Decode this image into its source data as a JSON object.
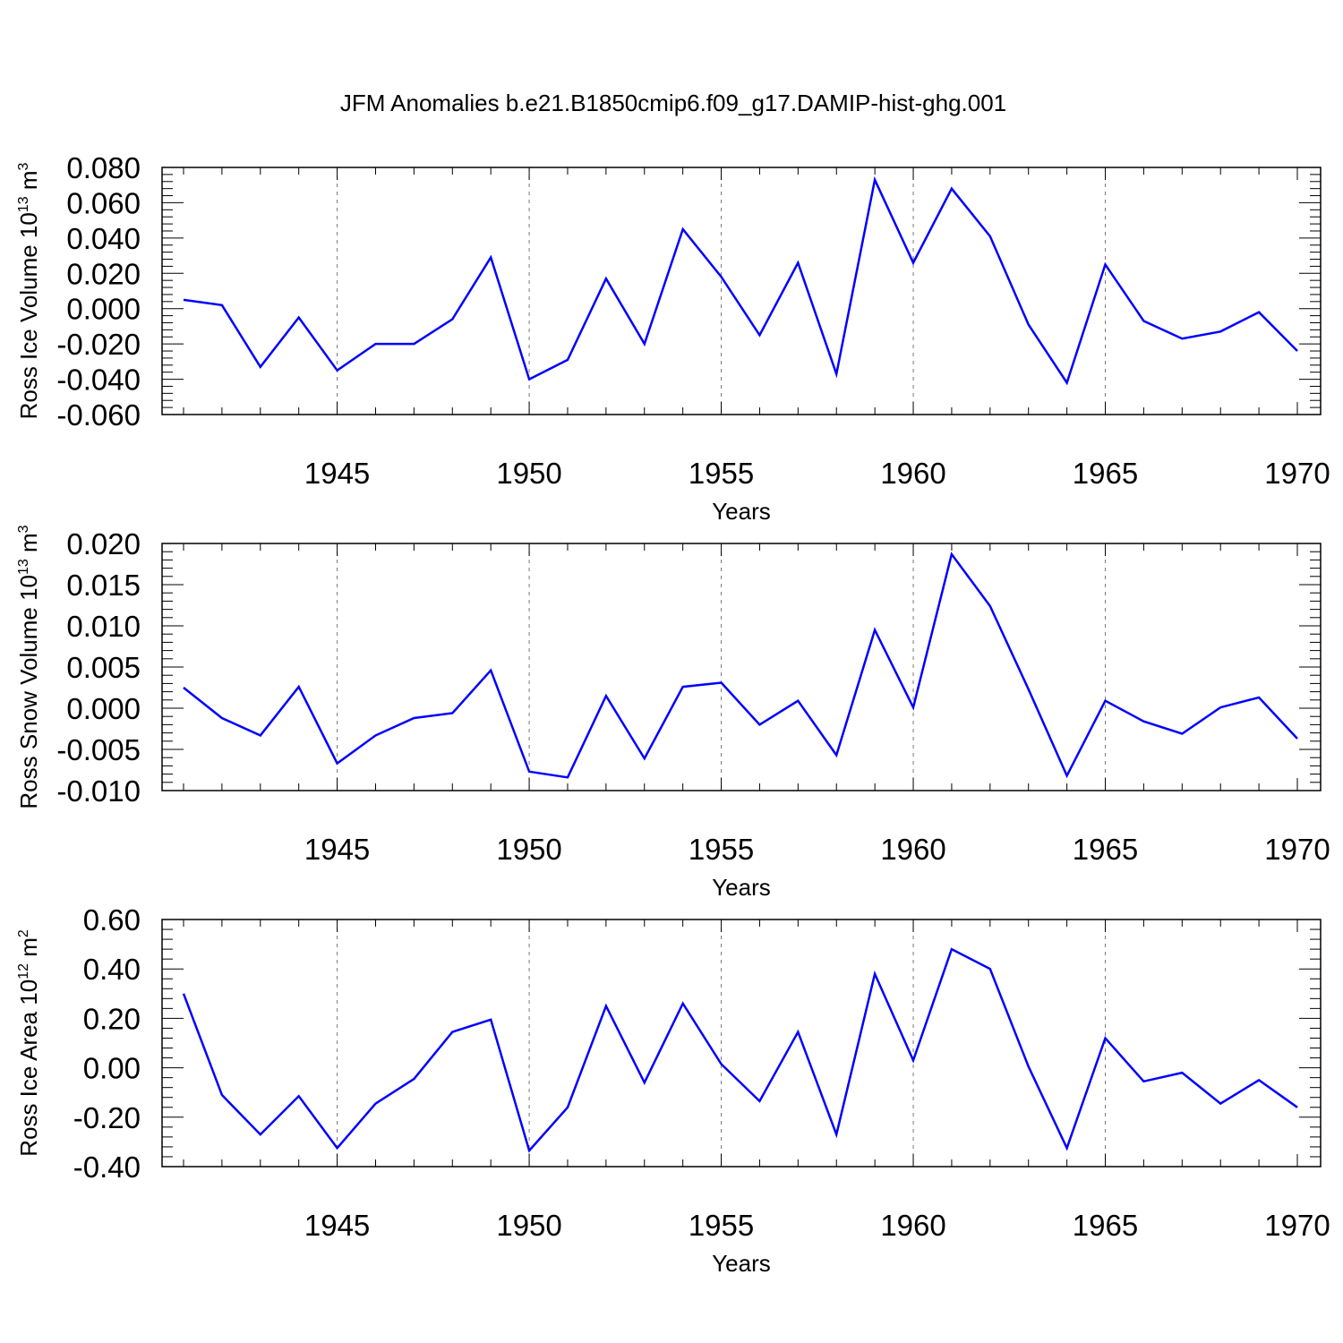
{
  "title": "JFM Anomalies b.e21.B1850cmip6.f09_g17.DAMIP-hist-ghg.001",
  "line_color": "#0000ff",
  "chart_data": [
    {
      "type": "line",
      "ylabel": "Ross Ice Volume 10",
      "ylabel_exp": "13",
      "ylabel_unit": " m",
      "ylabel_unit_exp": "3",
      "xlabel": "Years",
      "xlim": [
        1941,
        1970
      ],
      "ylim": [
        -0.06,
        0.08
      ],
      "ytick_values": [
        -0.06,
        -0.04,
        -0.02,
        0.0,
        0.02,
        0.04,
        0.06,
        0.08
      ],
      "ytick_labels": [
        "-0.060",
        "-0.040",
        "-0.020",
        "0.000",
        "0.020",
        "0.040",
        "0.060",
        "0.080"
      ],
      "xtick_values": [
        1945,
        1950,
        1955,
        1960,
        1965,
        1970
      ],
      "xtick_labels": [
        "1945",
        "1950",
        "1955",
        "1960",
        "1965",
        "1970"
      ],
      "grid": "vertical dashed at labeled years",
      "series": [
        {
          "x": [
            1941,
            1942,
            1943,
            1944,
            1945,
            1946,
            1947,
            1948,
            1949,
            1950,
            1951,
            1952,
            1953,
            1954,
            1955,
            1956,
            1957,
            1958,
            1959,
            1960,
            1961,
            1962,
            1963,
            1964,
            1965,
            1966,
            1967,
            1968,
            1969,
            1970
          ],
          "values": [
            0.005,
            0.002,
            -0.033,
            -0.005,
            -0.035,
            -0.02,
            -0.02,
            -0.006,
            0.029,
            -0.04,
            -0.029,
            0.017,
            -0.02,
            0.045,
            0.018,
            -0.015,
            0.026,
            -0.037,
            0.073,
            0.026,
            0.068,
            0.041,
            -0.009,
            -0.042,
            0.025,
            -0.007,
            -0.017,
            -0.013,
            -0.002,
            -0.024
          ]
        }
      ]
    },
    {
      "type": "line",
      "ylabel": "Ross Snow Volume 10",
      "ylabel_exp": "13",
      "ylabel_unit": " m",
      "ylabel_unit_exp": "3",
      "xlabel": "Years",
      "xlim": [
        1941,
        1970
      ],
      "ylim": [
        -0.01,
        0.02
      ],
      "ytick_values": [
        -0.01,
        -0.005,
        0.0,
        0.005,
        0.01,
        0.015,
        0.02
      ],
      "ytick_labels": [
        "-0.010",
        "-0.005",
        "0.000",
        "0.005",
        "0.010",
        "0.015",
        "0.020"
      ],
      "xtick_values": [
        1945,
        1950,
        1955,
        1960,
        1965,
        1970
      ],
      "xtick_labels": [
        "1945",
        "1950",
        "1955",
        "1960",
        "1965",
        "1970"
      ],
      "grid": "vertical dashed at labeled years",
      "series": [
        {
          "x": [
            1941,
            1942,
            1943,
            1944,
            1945,
            1946,
            1947,
            1948,
            1949,
            1950,
            1951,
            1952,
            1953,
            1954,
            1955,
            1956,
            1957,
            1958,
            1959,
            1960,
            1961,
            1962,
            1963,
            1964,
            1965,
            1966,
            1967,
            1968,
            1969,
            1970
          ],
          "values": [
            0.0025,
            -0.0012,
            -0.0033,
            0.0026,
            -0.0067,
            -0.0033,
            -0.0012,
            -0.0006,
            0.0046,
            -0.0077,
            -0.0084,
            0.0015,
            -0.0061,
            0.0026,
            0.0031,
            -0.002,
            0.0009,
            -0.0057,
            0.0095,
            0.0001,
            0.0187,
            0.0124,
            0.0023,
            -0.0082,
            0.0009,
            -0.0016,
            -0.0031,
            0.0001,
            0.0013,
            -0.0037
          ]
        }
      ]
    },
    {
      "type": "line",
      "ylabel": "Ross Ice Area 10",
      "ylabel_exp": "12",
      "ylabel_unit": " m",
      "ylabel_unit_exp": "2",
      "xlabel": "Years",
      "xlim": [
        1941,
        1970
      ],
      "ylim": [
        -0.4,
        0.6
      ],
      "ytick_values": [
        -0.4,
        -0.2,
        0.0,
        0.2,
        0.4,
        0.6
      ],
      "ytick_labels": [
        "-0.40",
        "-0.20",
        "0.00",
        "0.20",
        "0.40",
        "0.60"
      ],
      "xtick_values": [
        1945,
        1950,
        1955,
        1960,
        1965,
        1970
      ],
      "xtick_labels": [
        "1945",
        "1950",
        "1955",
        "1960",
        "1965",
        "1970"
      ],
      "grid": "vertical dashed at labeled years",
      "series": [
        {
          "x": [
            1941,
            1942,
            1943,
            1944,
            1945,
            1946,
            1947,
            1948,
            1949,
            1950,
            1951,
            1952,
            1953,
            1954,
            1955,
            1956,
            1957,
            1958,
            1959,
            1960,
            1961,
            1962,
            1963,
            1964,
            1965,
            1966,
            1967,
            1968,
            1969,
            1970
          ],
          "values": [
            0.3,
            -0.11,
            -0.27,
            -0.115,
            -0.325,
            -0.145,
            -0.045,
            0.145,
            0.195,
            -0.335,
            -0.16,
            0.25,
            -0.06,
            0.26,
            0.015,
            -0.135,
            0.145,
            -0.27,
            0.38,
            0.03,
            0.48,
            0.4,
            0.005,
            -0.325,
            0.12,
            -0.055,
            -0.02,
            -0.145,
            -0.05,
            -0.16
          ]
        }
      ]
    }
  ]
}
